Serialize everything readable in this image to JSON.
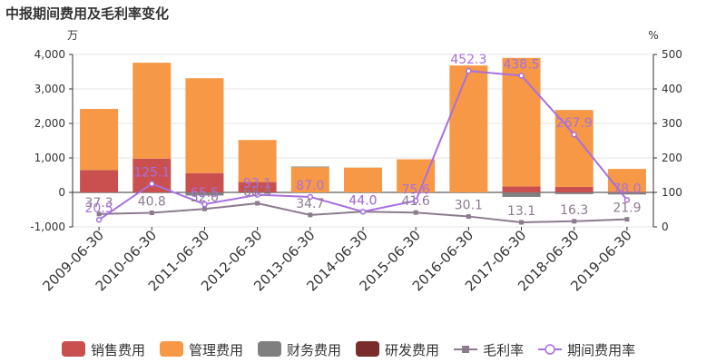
{
  "chart_data": {
    "type": "bar",
    "title": "中报期间费用及毛利率变化",
    "y_left_unit": "万",
    "y_right_unit": "%",
    "y_left_lim": [
      -1000,
      4000
    ],
    "y_left_ticks": [
      "-1,000",
      "0",
      "1,000",
      "2,000",
      "3,000",
      "4,000"
    ],
    "y_right_lim": [
      0,
      500
    ],
    "y_right_ticks": [
      "0",
      "100",
      "200",
      "300",
      "400",
      "500"
    ],
    "categories": [
      "2009-06-30",
      "2010-06-30",
      "2011-06-30",
      "2012-06-30",
      "2013-06-30",
      "2014-06-30",
      "2015-06-30",
      "2016-06-30",
      "2017-06-30",
      "2018-06-30",
      "2019-06-30"
    ],
    "bar_series": [
      {
        "name": "销售费用",
        "color": "#c9504f",
        "values": [
          650,
          980,
          560,
          300,
          0,
          0,
          0,
          0,
          170,
          160,
          20
        ]
      },
      {
        "name": "管理费用",
        "color": "#f69846",
        "values": [
          1770,
          2780,
          2750,
          1220,
          730,
          720,
          960,
          3680,
          3730,
          2230,
          660
        ]
      },
      {
        "name": "财务费用",
        "color": "#7f7f7f",
        "values": [
          0,
          0,
          -90,
          0,
          20,
          0,
          0,
          0,
          -130,
          -50,
          -60
        ]
      },
      {
        "name": "研发费用",
        "color": "#7a2c2b",
        "values": [
          0,
          0,
          0,
          0,
          0,
          0,
          0,
          0,
          0,
          0,
          0
        ]
      }
    ],
    "line_series": [
      {
        "name": "毛利率",
        "color": "#8c7b8f",
        "marker": "square",
        "values": [
          37.3,
          40.8,
          52.0,
          68.4,
          34.7,
          44.0,
          41.6,
          30.1,
          13.1,
          16.3,
          21.9
        ],
        "labels": [
          "37.3",
          "40.8",
          "52.0",
          "68.4",
          "34.7",
          "44.0",
          "41.6",
          "30.1",
          "13.1",
          "16.3",
          "21.9"
        ]
      },
      {
        "name": "期间费用率",
        "color": "#a86fe0",
        "marker": "circle",
        "values": [
          20.5,
          125.1,
          65.5,
          93.1,
          87.0,
          44.0,
          75.6,
          452.3,
          438.5,
          267.9,
          78.0
        ],
        "labels": [
          "20.5",
          "125.1",
          "65.5",
          "93.1",
          "87.0",
          "44.0",
          "75.6",
          "452.3",
          "438.5",
          "267.9",
          "78.0"
        ]
      }
    ],
    "legend_position": "bottom"
  }
}
